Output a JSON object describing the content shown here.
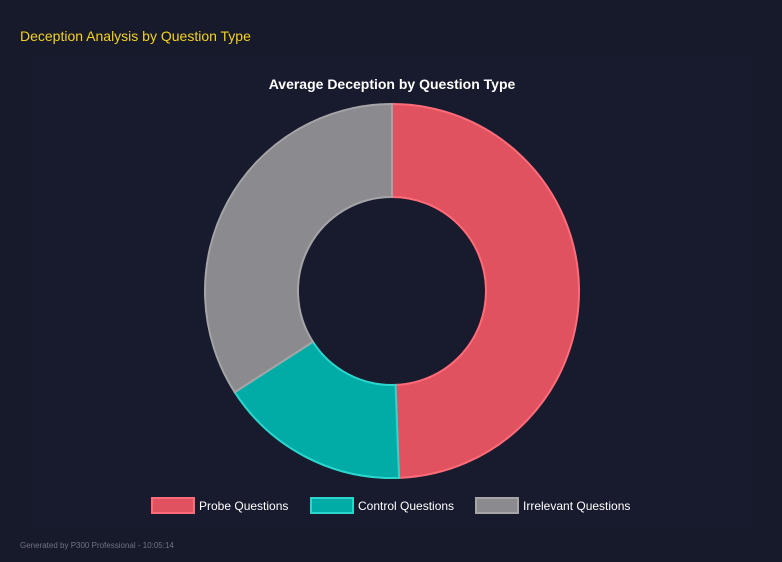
{
  "header": {
    "title": "Deception Analysis by Question Type"
  },
  "footer": {
    "text": "Generated by P300 Professional - 10:05:14"
  },
  "chart_data": {
    "type": "pie",
    "variant": "doughnut",
    "title": "Average Deception by Question Type",
    "categories": [
      "Probe Questions",
      "Control Questions",
      "Irrelevant Questions"
    ],
    "values": [
      49.4,
      16.5,
      34.1
    ],
    "colors": {
      "fill": [
        "#e0525f",
        "#00aca5",
        "#8b8b8f"
      ],
      "border": [
        "#ff6b78",
        "#2bd6cd",
        "#a5a5a8"
      ]
    },
    "legend": "bottom"
  }
}
